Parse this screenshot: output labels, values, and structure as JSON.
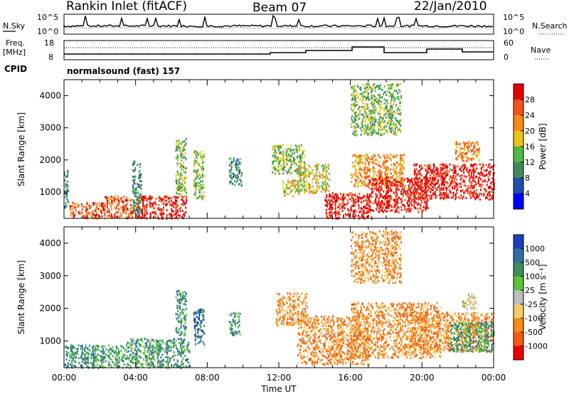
{
  "header": {
    "station": "Rankin Inlet (fitACF)",
    "beam": "Beam 07",
    "date": "22/Jan/2010"
  },
  "noise_panel": {
    "left_label": "N.Sky",
    "left_ticks": [
      "10^5",
      "10^0"
    ],
    "right_ticks": [
      "10^5",
      "10^0"
    ],
    "right_label": "N.Search",
    "right_line_style": "dotted"
  },
  "freq_panel": {
    "left_label_1": "Freq.",
    "left_label_2": "[MHz]",
    "left_ticks": [
      "18",
      "8"
    ],
    "right_ticks": [
      "60",
      "0"
    ],
    "right_label": "Nave",
    "right_line_style": "dotted"
  },
  "cpid": {
    "label": "CPID",
    "value": "normalsound (fast) 157"
  },
  "chart_data": [
    {
      "type": "heatmap",
      "name": "power",
      "ylabel": "Slant Range [km]",
      "ylim": [
        180,
        4500
      ],
      "yticks": [
        "1000",
        "2000",
        "3000",
        "4000"
      ],
      "xlim": [
        0,
        24
      ],
      "colorbar_label": "Power [dB]",
      "colorbar_ticks": [
        "4",
        "8",
        "12",
        "16",
        "20",
        "24",
        "28"
      ],
      "colors": [
        "#0000ff",
        "#1f4fa8",
        "#3e8a5e",
        "#4fb848",
        "#e6c21a",
        "#f58a1c",
        "#f0531c",
        "#e60000"
      ],
      "regions": [
        {
          "t": [
            0.3,
            2.2
          ],
          "r": [
            200,
            700
          ],
          "level": 6
        },
        {
          "t": [
            2.2,
            3.8
          ],
          "r": [
            200,
            900
          ],
          "level": 6
        },
        {
          "t": [
            4.0,
            6.8
          ],
          "r": [
            200,
            900
          ],
          "level": 7
        },
        {
          "t": [
            0.0,
            0.2
          ],
          "r": [
            500,
            1800
          ],
          "level": 2
        },
        {
          "t": [
            3.8,
            4.3
          ],
          "r": [
            300,
            2000
          ],
          "level": 2
        },
        {
          "t": [
            6.2,
            6.8
          ],
          "r": [
            900,
            2700
          ],
          "level": 3
        },
        {
          "t": [
            7.2,
            7.8
          ],
          "r": [
            800,
            2300
          ],
          "level": 3
        },
        {
          "t": [
            9.2,
            9.9
          ],
          "r": [
            1200,
            2100
          ],
          "level": 2
        },
        {
          "t": [
            11.6,
            13.4
          ],
          "r": [
            1600,
            2500
          ],
          "level": 3
        },
        {
          "t": [
            12.2,
            13.2
          ],
          "r": [
            900,
            1400
          ],
          "level": 4
        },
        {
          "t": [
            13.0,
            14.8
          ],
          "r": [
            1000,
            1900
          ],
          "level": 4
        },
        {
          "t": [
            14.5,
            17.2
          ],
          "r": [
            200,
            1000
          ],
          "level": 7
        },
        {
          "t": [
            16.0,
            19.0
          ],
          "r": [
            1200,
            2200
          ],
          "level": 5
        },
        {
          "t": [
            17.0,
            20.3
          ],
          "r": [
            400,
            1500
          ],
          "level": 7
        },
        {
          "t": [
            19.5,
            24.0
          ],
          "r": [
            800,
            1900
          ],
          "level": 7
        },
        {
          "t": [
            21.8,
            23.2
          ],
          "r": [
            2000,
            2600
          ],
          "level": 5
        },
        {
          "t": [
            16.0,
            18.8
          ],
          "r": [
            2800,
            4400
          ],
          "level": 3
        }
      ]
    },
    {
      "type": "heatmap",
      "name": "velocity",
      "ylabel": "Slant Range [km]",
      "xlabel": "Time UT",
      "ylim": [
        180,
        4500
      ],
      "yticks": [
        "1000",
        "2000",
        "3000",
        "4000"
      ],
      "xlim": [
        0,
        24
      ],
      "xticks": [
        "00:00",
        "04:00",
        "08:00",
        "12:00",
        "16:00",
        "20:00",
        "00:00"
      ],
      "colorbar_label": "Velocity [m s⁻¹]",
      "colorbar_ticks": [
        "1000",
        "500",
        "100",
        "25",
        "-25",
        "-100",
        "-500",
        "-1000"
      ],
      "colors": [
        "#1f3fb8",
        "#2e6fa0",
        "#3a8f5a",
        "#5cc23a",
        "#bdbdbd",
        "#f2cc6b",
        "#f58a1c",
        "#ef5b16",
        "#e60000"
      ],
      "regions": [
        {
          "t": [
            0.0,
            3.5
          ],
          "r": [
            200,
            900
          ],
          "level": 2
        },
        {
          "t": [
            3.5,
            7.0
          ],
          "r": [
            200,
            1100
          ],
          "level": 2
        },
        {
          "t": [
            6.2,
            6.8
          ],
          "r": [
            1200,
            2600
          ],
          "level": 2
        },
        {
          "t": [
            7.2,
            7.8
          ],
          "r": [
            900,
            2000
          ],
          "level": 1
        },
        {
          "t": [
            9.2,
            9.8
          ],
          "r": [
            1200,
            1900
          ],
          "level": 2
        },
        {
          "t": [
            11.8,
            13.6
          ],
          "r": [
            1500,
            2500
          ],
          "level": 6
        },
        {
          "t": [
            13.0,
            17.0
          ],
          "r": [
            300,
            1800
          ],
          "level": 6
        },
        {
          "t": [
            16.0,
            21.0
          ],
          "r": [
            500,
            2200
          ],
          "level": 6
        },
        {
          "t": [
            19.5,
            24.0
          ],
          "r": [
            700,
            1900
          ],
          "level": 6
        },
        {
          "t": [
            21.5,
            24.0
          ],
          "r": [
            700,
            1600
          ],
          "level": 2
        },
        {
          "t": [
            22.2,
            23.0
          ],
          "r": [
            2000,
            2500
          ],
          "level": 4
        },
        {
          "t": [
            16.0,
            18.8
          ],
          "r": [
            2800,
            4400
          ],
          "level": 6
        }
      ]
    }
  ]
}
